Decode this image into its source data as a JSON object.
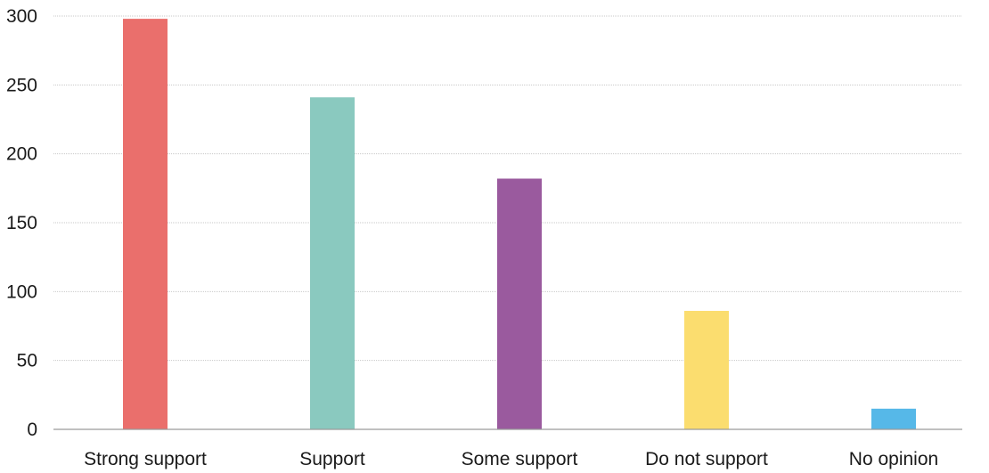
{
  "chart_data": {
    "type": "bar",
    "categories": [
      "Strong support",
      "Support",
      "Some support",
      "Do not support",
      "No opinion"
    ],
    "values": [
      298,
      241,
      182,
      86,
      15
    ],
    "colors": [
      "#ea6f6c",
      "#8ac9bf",
      "#9a5a9e",
      "#fbdd6f",
      "#56b8e8"
    ],
    "ylim": [
      0,
      300
    ],
    "yticks": [
      0,
      50,
      100,
      150,
      200,
      250,
      300
    ],
    "grid": true,
    "title": "",
    "xlabel": "",
    "ylabel": ""
  }
}
